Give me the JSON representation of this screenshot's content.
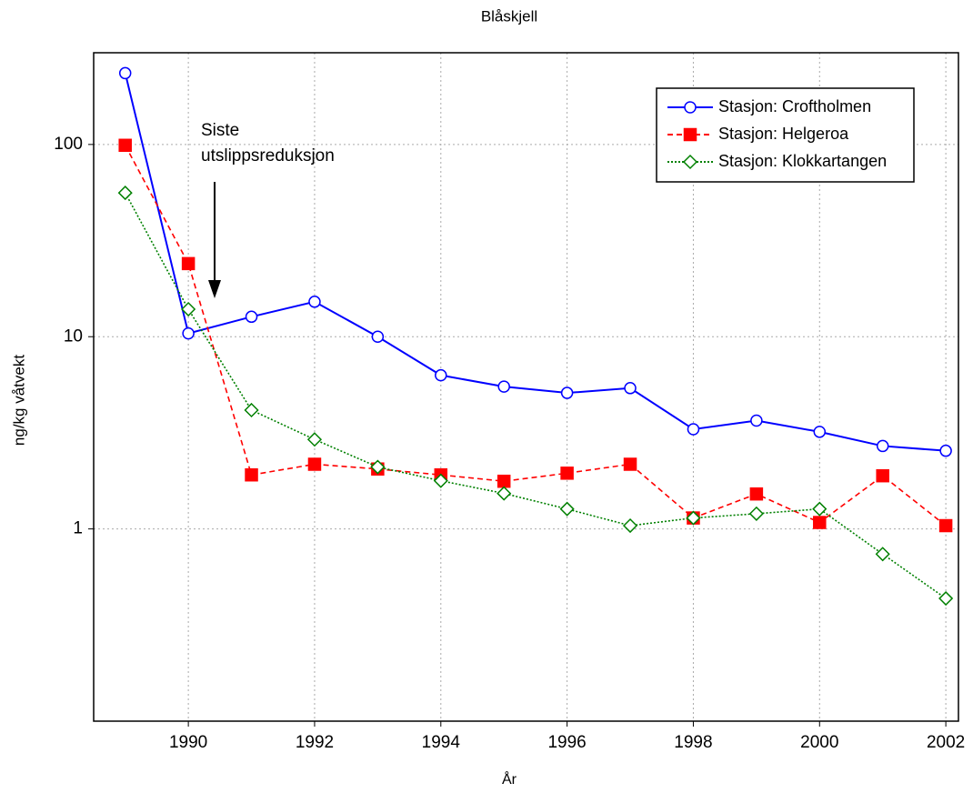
{
  "chart_data": {
    "type": "line",
    "title": "Blåskjell",
    "x_label": "År",
    "y_label": "ng/kg våtvekt",
    "annotation_lines": [
      "Siste",
      "utslippsreduksjon"
    ],
    "x": [
      1989,
      1990,
      1991,
      1992,
      1993,
      1994,
      1995,
      1996,
      1997,
      1998,
      1999,
      2000,
      2001,
      2002
    ],
    "series": [
      {
        "name": "Stasjon: Croftholmen",
        "color": "#0000ff",
        "line_style": "solid",
        "marker": "circle",
        "values": [
          235,
          10.4,
          12.7,
          15.2,
          10,
          6.3,
          5.5,
          5.1,
          5.4,
          3.3,
          3.66,
          3.2,
          2.7,
          2.55
        ]
      },
      {
        "name": "Stasjon: Helgeroa",
        "color": "#ff0000",
        "line_style": "dashed",
        "marker": "square",
        "values": [
          99,
          24,
          1.91,
          2.17,
          2.05,
          1.91,
          1.77,
          1.95,
          2.17,
          1.14,
          1.52,
          1.08,
          1.89,
          1.04
        ]
      },
      {
        "name": "Stasjon: Klokkartangen",
        "color": "#008000",
        "line_style": "dotted",
        "marker": "diamond",
        "values": [
          56,
          13.9,
          4.15,
          2.92,
          2.1,
          1.78,
          1.53,
          1.27,
          1.04,
          1.14,
          1.2,
          1.27,
          0.74,
          0.435
        ]
      }
    ],
    "xlim": [
      1988.5,
      2002.2
    ],
    "xticks": [
      1990,
      1992,
      1994,
      1996,
      1998,
      2000,
      2002
    ],
    "ylim": [
      0.1,
      300
    ],
    "yticks": [
      1,
      10,
      100
    ],
    "log_y": true,
    "grid": true,
    "legend": "upper right"
  }
}
